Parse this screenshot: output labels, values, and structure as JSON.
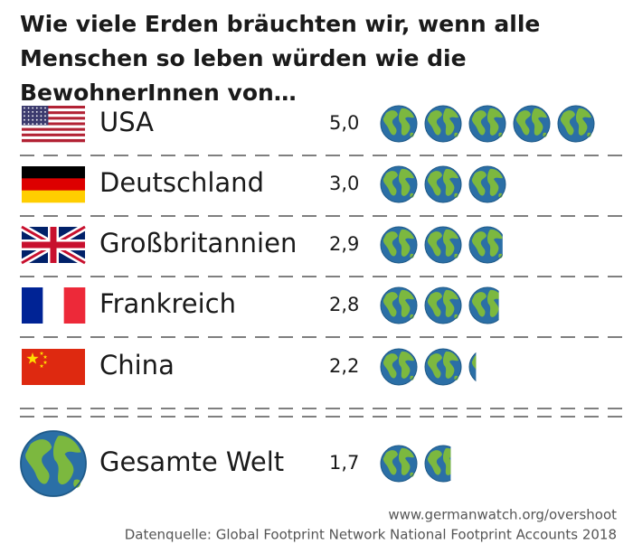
{
  "chart_data": {
    "type": "pictograph",
    "title": "Wie viele Erden bräuchten wir, wenn alle Menschen so leben würden wie die BewohnerInnen von…",
    "categories": [
      "USA",
      "Deutschland",
      "Großbritannien",
      "Frankreich",
      "China",
      "Gesamte Welt"
    ],
    "values": [
      5.0,
      3.0,
      2.9,
      2.8,
      2.2,
      1.7
    ],
    "value_labels": [
      "5,0",
      "3,0",
      "2,9",
      "2,8",
      "2,2",
      "1,7"
    ],
    "source": [
      "www.germanwatch.org/overshoot",
      "Datenquelle: Global Footprint Network National Footprint Accounts 2018"
    ]
  }
}
